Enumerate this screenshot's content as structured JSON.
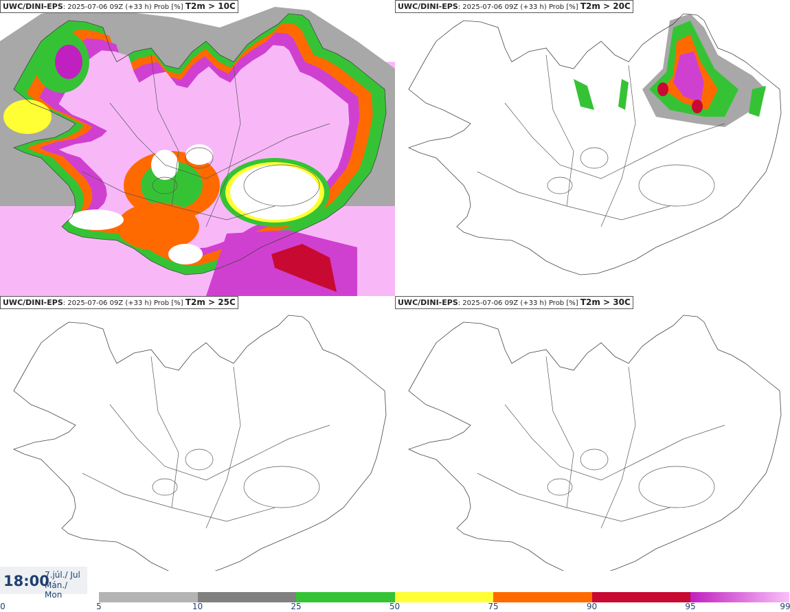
{
  "panels": [
    {
      "model": "UWC/DINI-EPS",
      "info": ": 2025-07-06 09Z (+33 h) Prob [%]",
      "param": "T2m > 10C"
    },
    {
      "model": "UWC/DINI-EPS",
      "info": ": 2025-07-06 09Z (+33 h) Prob [%]",
      "param": "T2m > 20C"
    },
    {
      "model": "UWC/DINI-EPS",
      "info": ": 2025-07-06 09Z (+33 h) Prob [%]",
      "param": "T2m > 25C"
    },
    {
      "model": "UWC/DINI-EPS",
      "info": ": 2025-07-06 09Z (+33 h) Prob [%]",
      "param": "T2m > 30C"
    }
  ],
  "valid_time": {
    "time": "18:00",
    "date": "7.júl./ Jul",
    "day": "Mán./ Mon"
  },
  "colorbar": {
    "ticks": [
      "0",
      "5",
      "10",
      "25",
      "50",
      "75",
      "90",
      "95",
      "99"
    ],
    "colors": [
      "#b4b4b4",
      "#808080",
      "#35c335",
      "#ffff33",
      "#ff6a00",
      "#c80a32",
      "#c020c0",
      "#f8c0f8"
    ]
  }
}
